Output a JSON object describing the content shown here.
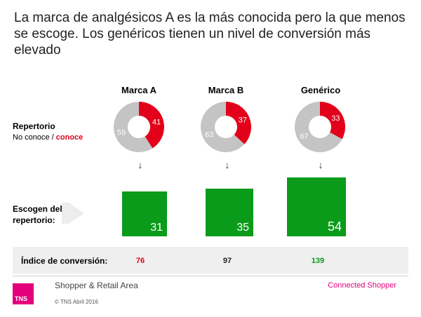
{
  "title": "La marca de analgésicos A es la más conocida pero la que menos se escoge. Los genéricos tienen un nivel de conversión más elevado",
  "repertorio": {
    "label": "Repertorio",
    "sub_no": "No conoce / ",
    "sub_si": "conoce"
  },
  "escogen_label_1": "Escogen del",
  "escogen_label_2": "repertorio:",
  "indice_label": "Índice de conversión:",
  "colors": {
    "red": "#e2001a",
    "grey": "#c4c4c4",
    "green": "#0a9b1a",
    "brand": "#e3007a"
  },
  "chart_data": {
    "type": "bar",
    "categories": [
      "Marca A",
      "Marca B",
      "Genérico"
    ],
    "awareness": [
      {
        "conoce": 41,
        "no_conoce": 59
      },
      {
        "conoce": 37,
        "no_conoce": 63
      },
      {
        "conoce": 33,
        "no_conoce": 67
      }
    ],
    "escogen": [
      31,
      35,
      54
    ],
    "indice": [
      76,
      97,
      139
    ]
  },
  "footer": {
    "logo": "TNS",
    "area": "Shopper & Retail Area",
    "copyright": "© TNS Abril 2016",
    "connected": "Connected Shopper"
  }
}
